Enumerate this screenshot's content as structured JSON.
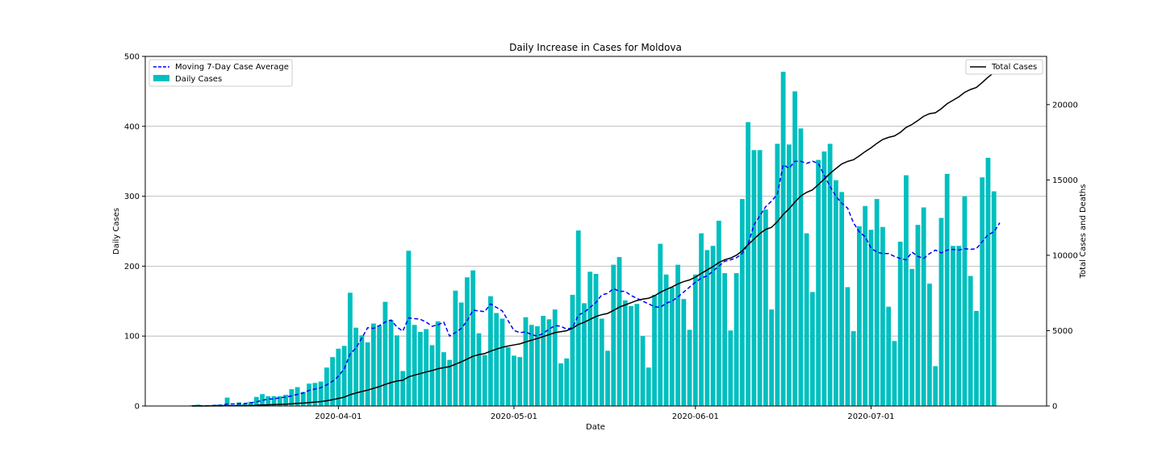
{
  "chart_data": {
    "type": "bar",
    "title": "Daily Increase in Cases for Moldova",
    "xlabel": "Date",
    "ylabel_left": "Daily Cases",
    "ylabel_right": "Total Cases and Deaths",
    "x_start": "2020-03-07",
    "x_range": [
      "2020-02-28",
      "2020-07-31"
    ],
    "ylim_left": [
      0,
      500
    ],
    "ylim_right": [
      0,
      23200
    ],
    "yticks_left": [
      0,
      100,
      200,
      300,
      400,
      500
    ],
    "yticks_right": [
      0,
      5000,
      10000,
      15000,
      20000
    ],
    "xticks": [
      "2020-04-01",
      "2020-05-01",
      "2020-06-01",
      "2020-07-01"
    ],
    "grid": "horizontal",
    "legend_left": {
      "placement": "top-left"
    },
    "legend_right": {
      "placement": "top-right"
    },
    "colors": {
      "bars": "#00bfbf",
      "average": "#0000ff",
      "total": "#000000"
    },
    "series": [
      {
        "name": "Daily Cases",
        "kind": "bar",
        "values": [
          1,
          2,
          0,
          1,
          2,
          2,
          12,
          1,
          5,
          3,
          6,
          13,
          17,
          14,
          14,
          14,
          16,
          24,
          27,
          20,
          32,
          33,
          35,
          55,
          70,
          82,
          86,
          162,
          112,
          101,
          91,
          118,
          115,
          149,
          123,
          101,
          50,
          222,
          116,
          106,
          110,
          87,
          121,
          77,
          66,
          165,
          148,
          184,
          194,
          104,
          73,
          157,
          133,
          125,
          84,
          72,
          70,
          127,
          116,
          114,
          129,
          124,
          138,
          61,
          68,
          159,
          251,
          147,
          192,
          189,
          125,
          79,
          202,
          213,
          151,
          143,
          146,
          100,
          55,
          159,
          232,
          188,
          170,
          202,
          153,
          109,
          188,
          247,
          223,
          229,
          265,
          190,
          108,
          190,
          296,
          406,
          366,
          366,
          281,
          138,
          375,
          478,
          374,
          450,
          397,
          247,
          163,
          352,
          364,
          375,
          323,
          306,
          170,
          107,
          257,
          286,
          252,
          296,
          256,
          142,
          93,
          235,
          330,
          196,
          259,
          284,
          175,
          57,
          269,
          332,
          229,
          229,
          300,
          186,
          136,
          327,
          355,
          307
        ]
      },
      {
        "name": "Moving 7-Day Case Average",
        "kind": "line",
        "style": "dashed",
        "values": [
          0.1,
          0.3,
          0.3,
          0.4,
          0.7,
          1.1,
          2.9,
          2.9,
          3.3,
          3.6,
          4.4,
          6.0,
          8.1,
          9.9,
          10.0,
          11.9,
          12.6,
          14.5,
          16.6,
          18.6,
          22.4,
          24.2,
          26.3,
          30.1,
          35.4,
          42.6,
          53.2,
          74.2,
          83.0,
          97.0,
          112.0,
          111.0,
          115.0,
          120.0,
          123.0,
          113.0,
          107.0,
          126.0,
          125.0,
          124.0,
          120.0,
          114.0,
          116.0,
          120.0,
          100.0,
          105.0,
          111.0,
          122.0,
          137.0,
          136.0,
          135.0,
          146.0,
          141.0,
          136.0,
          122.0,
          108.0,
          105.0,
          106.0,
          102.0,
          100.0,
          104.0,
          110.0,
          115.0,
          114.0,
          110.0,
          112.0,
          130.0,
          134.0,
          141.0,
          148.0,
          159.0,
          161.0,
          168.0,
          164.0,
          164.0,
          158.0,
          154.0,
          150.0,
          146.0,
          142.0,
          141.0,
          147.0,
          150.0,
          156.0,
          163.0,
          170.0,
          177.0,
          183.0,
          186.0,
          193.0,
          200.0,
          207.0,
          209.0,
          212.0,
          218.0,
          232.0,
          259.0,
          272.0,
          285.0,
          293.0,
          303.0,
          345.0,
          340.0,
          350.0,
          350.0,
          347.0,
          350.0,
          347.0,
          330.0,
          314.0,
          300.0,
          290.0,
          283.0,
          262.0,
          249.0,
          242.0,
          226.0,
          220.0,
          218.0,
          218.0,
          214.0,
          211.0,
          209.0,
          220.0,
          214.0,
          211.0,
          218.0,
          223.0,
          219.0,
          223.0,
          224.0,
          223.0,
          225.0,
          224.0,
          225.0,
          235.0,
          245.0,
          249.0,
          262.0
        ]
      },
      {
        "name": "Total Cases",
        "kind": "line",
        "axis": "right",
        "values": [
          1,
          3,
          3,
          4,
          6,
          8,
          20,
          21,
          26,
          29,
          35,
          48,
          65,
          79,
          93,
          107,
          123,
          147,
          174,
          194,
          226,
          259,
          294,
          349,
          419,
          501,
          587,
          749,
          861,
          962,
          1053,
          1171,
          1286,
          1435,
          1558,
          1659,
          1709,
          1931,
          2047,
          2153,
          2263,
          2350,
          2471,
          2548,
          2614,
          2779,
          2927,
          3111,
          3305,
          3409,
          3482,
          3639,
          3772,
          3897,
          3981,
          4053,
          4123,
          4250,
          4366,
          4480,
          4609,
          4733,
          4871,
          4932,
          5000,
          5159,
          5410,
          5557,
          5749,
          5938,
          6063,
          6142,
          6344,
          6557,
          6708,
          6851,
          6997,
          7097,
          7152,
          7311,
          7543,
          7731,
          7901,
          8103,
          8256,
          8365,
          8553,
          8800,
          9023,
          9252,
          9517,
          9707,
          9815,
          10005,
          10301,
          10707,
          11073,
          11439,
          11720,
          11858,
          12233,
          12711,
          13085,
          13535,
          13932,
          14179,
          14342,
          14694,
          15058,
          15433,
          15756,
          16062,
          16232,
          16339,
          16596,
          16882,
          17134,
          17430,
          17686,
          17828,
          17921,
          18156,
          18486,
          18682,
          18941,
          19225,
          19400,
          19457,
          19726,
          20058,
          20287,
          20516,
          20816,
          21002,
          21138,
          21465,
          21820,
          22127
        ]
      }
    ]
  }
}
